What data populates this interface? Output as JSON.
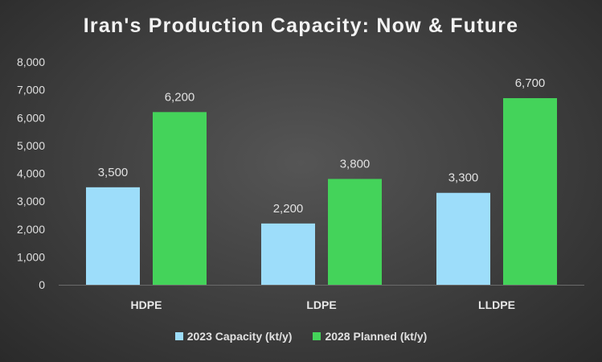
{
  "chart_data": {
    "type": "bar",
    "title": "Iran's Production Capacity: Now & Future",
    "categories": [
      "HDPE",
      "LDPE",
      "LLDPE"
    ],
    "series": [
      {
        "name": "2023 Capacity (kt/y)",
        "values": [
          3500,
          2200,
          3300
        ],
        "color": "#9dddfa",
        "labels": [
          "3,500",
          "2,200",
          "3,300"
        ]
      },
      {
        "name": "2028 Planned (kt/y)",
        "values": [
          6200,
          3800,
          6700
        ],
        "color": "#44d35a",
        "labels": [
          "6,200",
          "3,800",
          "6,700"
        ]
      }
    ],
    "ylim": [
      0,
      8000
    ],
    "yticks": [
      "0",
      "1,000",
      "2,000",
      "3,000",
      "4,000",
      "5,000",
      "6,000",
      "7,000",
      "8,000"
    ],
    "grid": false,
    "legend": "bottom"
  }
}
